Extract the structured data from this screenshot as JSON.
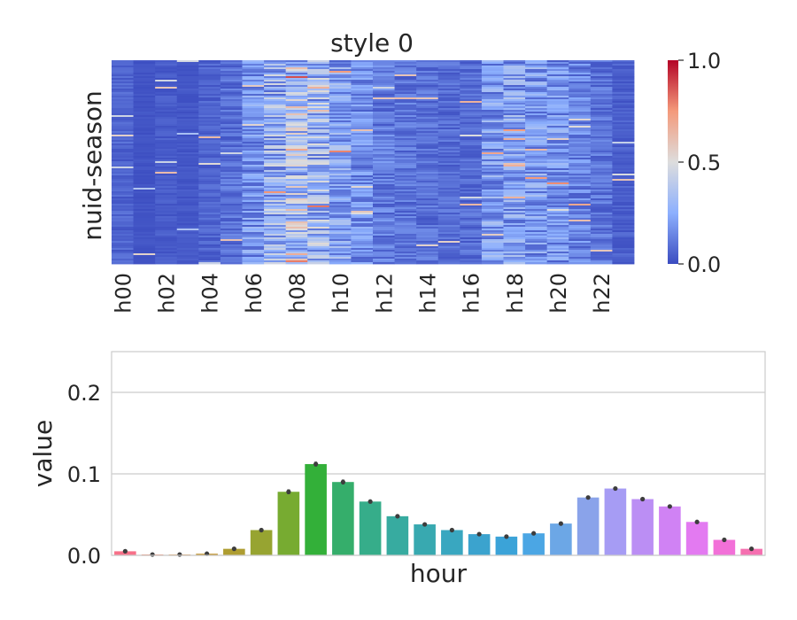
{
  "chart_data": [
    {
      "type": "heatmap",
      "title": "style 0",
      "xlabel": "",
      "ylabel": "nuid-season",
      "x_tick_labels": [
        "h00",
        "h02",
        "h04",
        "h06",
        "h08",
        "h10",
        "h12",
        "h14",
        "h16",
        "h18",
        "h20",
        "h22"
      ],
      "columns": 24,
      "colormap": "coolwarm",
      "colorbar": {
        "min": 0.0,
        "max": 1.0,
        "tick_labels": [
          "0.0",
          "0.5",
          "1.0"
        ],
        "tick_values": [
          0.0,
          0.5,
          1.0
        ]
      },
      "column_mean_intensity": [
        0.06,
        0.02,
        0.04,
        0.03,
        0.06,
        0.09,
        0.18,
        0.28,
        0.36,
        0.3,
        0.22,
        0.16,
        0.12,
        0.1,
        0.09,
        0.08,
        0.08,
        0.2,
        0.22,
        0.2,
        0.18,
        0.14,
        0.1,
        0.05
      ],
      "grid": false
    },
    {
      "type": "bar",
      "title": "",
      "xlabel": "hour",
      "ylabel": "value",
      "ylim": [
        0,
        0.25
      ],
      "y_ticks": [
        0.0,
        0.1,
        0.2
      ],
      "y_tick_labels": [
        "0.0",
        "0.1",
        "0.2"
      ],
      "grid": true,
      "values": [
        0.005,
        0.001,
        0.001,
        0.002,
        0.008,
        0.031,
        0.078,
        0.112,
        0.09,
        0.066,
        0.048,
        0.038,
        0.031,
        0.026,
        0.023,
        0.027,
        0.039,
        0.071,
        0.082,
        0.069,
        0.06,
        0.041,
        0.019,
        0.008
      ],
      "error_bars": [
        0.0015,
        0.0008,
        0.0006,
        0.001,
        0.0015,
        0.002,
        0.003,
        0.003,
        0.003,
        0.002,
        0.002,
        0.002,
        0.002,
        0.0015,
        0.0015,
        0.0015,
        0.002,
        0.002,
        0.002,
        0.002,
        0.002,
        0.0015,
        0.0015,
        0.0012
      ],
      "bar_colors": [
        "#f77189",
        "#f7754f",
        "#dc8932",
        "#c39532",
        "#ae9d31",
        "#97a431",
        "#77ab31",
        "#33b039",
        "#35ae6b",
        "#36ad8a",
        "#37aba0",
        "#38a9b0",
        "#39a7c0",
        "#3ba3ce",
        "#3ba3d8",
        "#4ba6e4",
        "#6ca7e6",
        "#8aa3ea",
        "#a69cf4",
        "#bb8ef4",
        "#d082f4",
        "#e37af1",
        "#f270d8",
        "#f56fb0"
      ]
    }
  ]
}
